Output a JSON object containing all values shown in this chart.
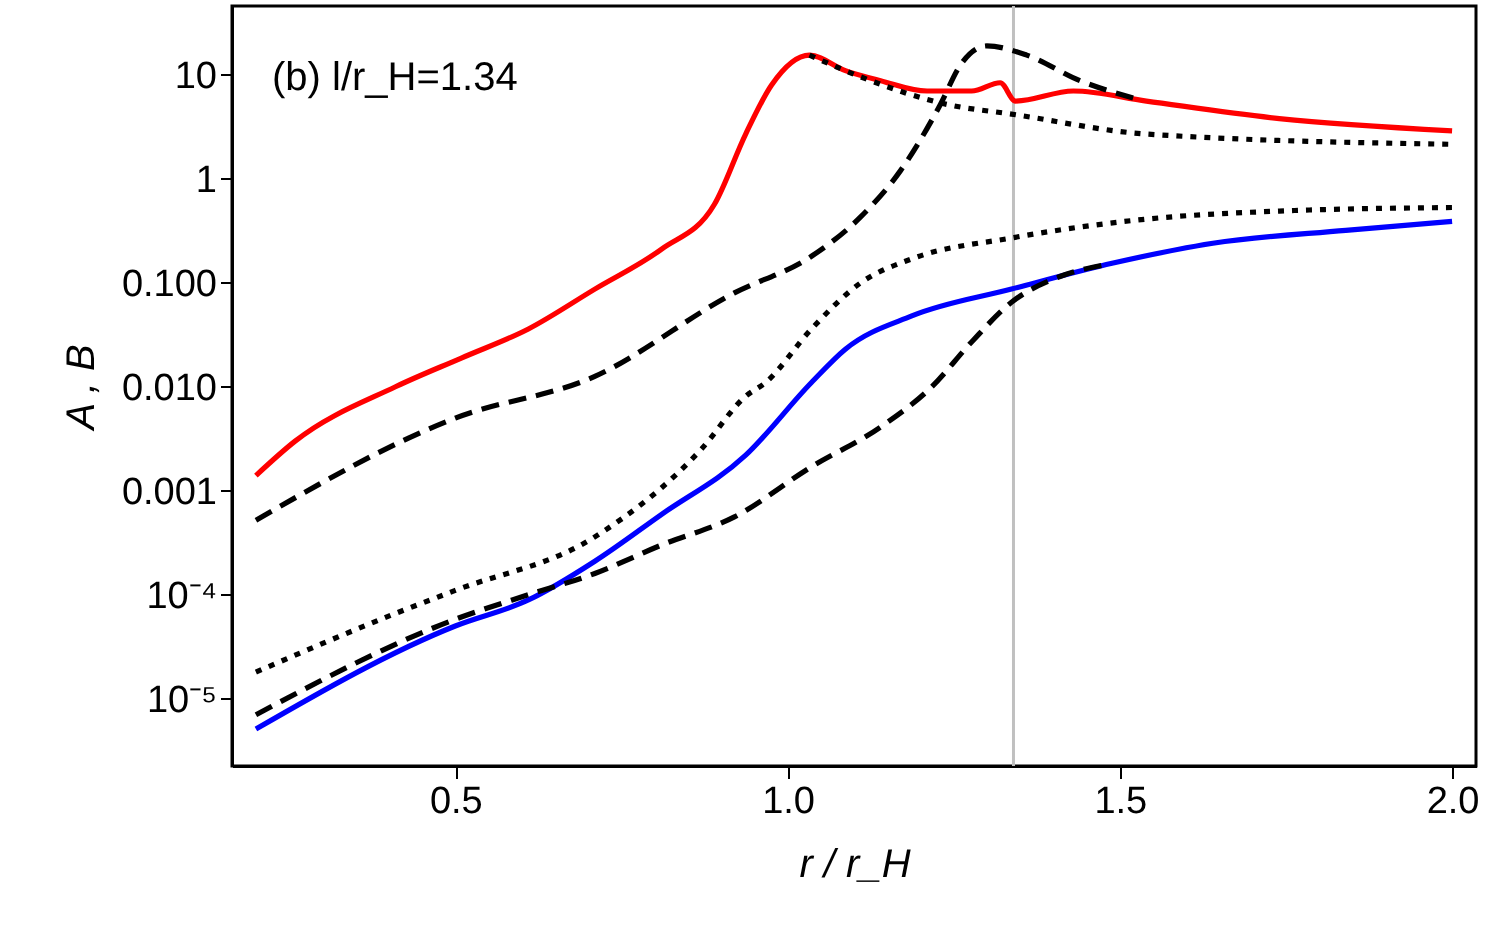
{
  "chart_data": {
    "type": "line",
    "xlabel": "r / r_H",
    "ylabel": "A , B",
    "log": "y",
    "grid": false,
    "xlim": [
      0.164,
      2.036
    ],
    "xticks": [
      0.5,
      {
        "value": 1.0,
        "label": "1.0"
      },
      1.5,
      {
        "value": 2.0,
        "label": "2.0"
      }
    ],
    "ylim": [
      2.25e-06,
      46
    ],
    "yticks": [
      {
        "value": 1e-05,
        "label": "10⁻⁵"
      },
      {
        "value": 0.0001,
        "label": "10⁻⁴"
      },
      {
        "value": 0.001,
        "label": "0.001"
      },
      {
        "value": 0.01,
        "label": "0.010"
      },
      {
        "value": 0.1,
        "label": "0.100"
      },
      1,
      10
    ],
    "annotations": [
      "(b) l/r_H=1.34"
    ],
    "ref_lines": [
      {
        "axis": "x",
        "value": 1.34,
        "color": "#c0c0c0",
        "line_style": "solid"
      }
    ],
    "series": [
      {
        "color": "#ff0000",
        "line_style": "solid",
        "x": [
          0.2,
          0.259,
          0.41,
          0.51,
          0.61,
          0.71,
          0.81,
          0.89,
          0.937,
          0.976,
          1.033,
          1.087,
          1.14,
          1.21,
          1.277,
          1.32,
          1.343,
          1.43,
          1.54,
          1.74,
          2.0
        ],
        "values": [
          0.0014,
          0.003,
          0.01,
          0.019,
          0.036,
          0.087,
          0.21,
          0.57,
          2.7,
          8,
          15.5,
          11,
          8.8,
          7.0,
          7.0,
          8.4,
          5.6,
          7.0,
          5.6,
          3.8,
          2.9
        ]
      },
      {
        "color": "#000000",
        "line_style": "dotted",
        "x": [
          1.033,
          1.117,
          1.24,
          1.337,
          1.54,
          2.0
        ],
        "values": [
          15.5,
          9.2,
          5.2,
          4.2,
          2.7,
          2.15
        ]
      },
      {
        "color": "#000000",
        "line_style": "dashed",
        "x": [
          0.2,
          0.5,
          0.71,
          0.92,
          1.036,
          1.11,
          1.17,
          1.23,
          1.26,
          1.3,
          1.36,
          1.44,
          1.52
        ],
        "values": [
          0.00052,
          0.005,
          0.0126,
          0.08,
          0.18,
          0.43,
          1.2,
          5.2,
          12.4,
          19,
          15.5,
          8.8,
          6.0
        ]
      },
      {
        "color": "#000000",
        "line_style": "dotted",
        "x": [
          0.2,
          0.41,
          0.5,
          0.71,
          0.87,
          0.937,
          0.967,
          1.036,
          1.11,
          1.187,
          1.337,
          1.54,
          1.74,
          2.0
        ],
        "values": [
          1.8e-05,
          6.6e-05,
          0.00011,
          0.00036,
          0.0025,
          0.0081,
          0.011,
          0.036,
          0.1,
          0.17,
          0.27,
          0.41,
          0.49,
          0.53
        ]
      },
      {
        "color": "#0000ff",
        "line_style": "solid",
        "x": [
          0.2,
          0.5,
          0.61,
          0.71,
          0.81,
          0.937,
          1.036,
          1.087,
          1.187,
          1.337,
          1.49,
          1.64,
          1.84,
          2.0
        ],
        "values": [
          5.1e-06,
          5e-05,
          8.9e-05,
          0.00021,
          0.00059,
          0.0022,
          0.011,
          0.023,
          0.048,
          0.087,
          0.155,
          0.24,
          0.32,
          0.39
        ]
      },
      {
        "color": "#000000",
        "line_style": "dashed",
        "x": [
          0.2,
          0.5,
          0.61,
          0.71,
          0.81,
          0.92,
          1.036,
          1.14,
          1.217,
          1.277,
          1.337,
          1.41,
          1.48
        ],
        "values": [
          7e-06,
          5.8e-05,
          0.0001,
          0.00016,
          0.0003,
          0.00056,
          0.0017,
          0.0041,
          0.01,
          0.027,
          0.065,
          0.115,
          0.15
        ]
      }
    ]
  }
}
